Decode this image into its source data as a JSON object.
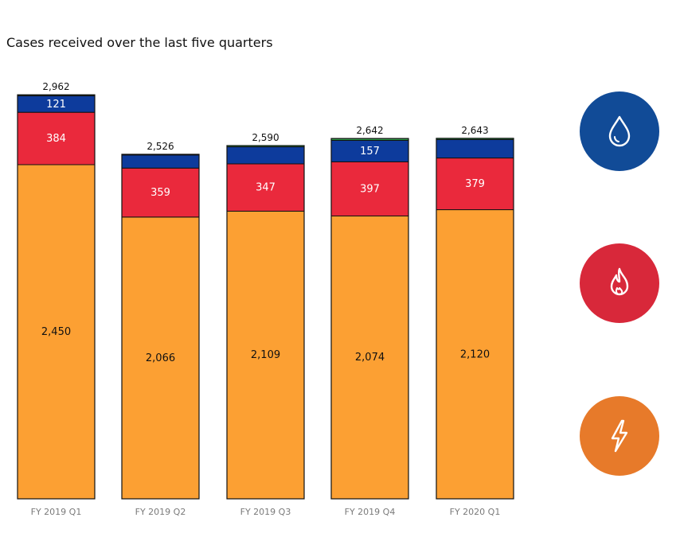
{
  "chart_data": {
    "type": "bar",
    "stacked": true,
    "title": "Cases received over the last five quarters",
    "categories": [
      "FY 2019 Q1",
      "FY 2019 Q2",
      "FY 2019 Q3",
      "FY 2019 Q4",
      "FY 2020 Q1"
    ],
    "totals": [
      2962,
      2526,
      2590,
      2642,
      2643
    ],
    "total_labels": [
      "2,962",
      "2,526",
      "2,590",
      "2,642",
      "2,643"
    ],
    "series": [
      {
        "color": "#FCA033",
        "values": [
          2450,
          2066,
          2109,
          2074,
          2120
        ],
        "labels": [
          "2,450",
          "2,066",
          "2,109",
          "2,074",
          "2,120"
        ],
        "label_color": "#111111"
      },
      {
        "color": "#EA293C",
        "values": [
          384,
          359,
          347,
          397,
          379
        ],
        "labels": [
          "384",
          "359",
          "347",
          "397",
          "379"
        ],
        "label_color": "#ffffff"
      },
      {
        "color": "#0D3B9C",
        "values": [
          121,
          96,
          125,
          157,
          135
        ],
        "labels": [
          "121",
          "",
          "",
          "157",
          ""
        ],
        "label_color": "#ffffff"
      },
      {
        "color": "#2E9E4A",
        "values": [
          7,
          5,
          9,
          14,
          9
        ],
        "labels": [
          "",
          "",
          "",
          "",
          ""
        ],
        "label_color": "#ffffff"
      }
    ],
    "grid": false,
    "legend": "right"
  },
  "icons": [
    {
      "name": "water-drop-icon",
      "color": "#114B97"
    },
    {
      "name": "flame-icon",
      "color": "#D8283A"
    },
    {
      "name": "lightning-icon",
      "color": "#E77A2A"
    }
  ]
}
